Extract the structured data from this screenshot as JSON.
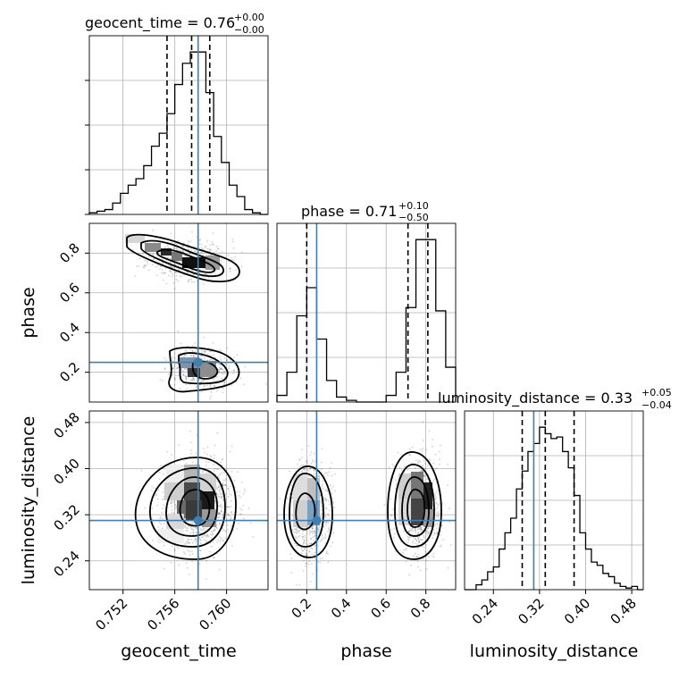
{
  "chart_data": {
    "type": "corner",
    "parameters": [
      "geocent_time",
      "phase",
      "luminosity_distance"
    ],
    "colors": {
      "truth": "#3f7fb1",
      "contour": "#000000",
      "grid": "#b0b0b0"
    },
    "truths": {
      "geocent_time": 0.7578,
      "phase": 0.25,
      "luminosity_distance": 0.31
    },
    "titles": {
      "geocent_time": {
        "label": "geocent_time = 0.76",
        "upper": "+0.00",
        "lower": "−0.00"
      },
      "phase": {
        "label": "phase = 0.71",
        "upper": "+0.10",
        "lower": "−0.50"
      },
      "luminosity_distance": {
        "label": "luminosity_distance = 0.33",
        "upper": "+0.05",
        "lower": "−0.04"
      }
    },
    "ranges": {
      "geocent_time": [
        0.7494,
        0.7632
      ],
      "phase": [
        0.05,
        0.95
      ],
      "luminosity_distance": [
        0.19,
        0.5
      ]
    },
    "ticks": {
      "geocent_time": [
        "0.752",
        "0.756",
        "0.760"
      ],
      "phase": [
        "0.2",
        "0.4",
        "0.6",
        "0.8"
      ],
      "luminosity_distance": [
        "0.24",
        "0.32",
        "0.40",
        "0.48"
      ]
    },
    "quantiles": {
      "geocent_time": [
        0.7554,
        0.7573,
        0.7587
      ],
      "phase": [
        0.2,
        0.71,
        0.81
      ],
      "luminosity_distance": [
        0.29,
        0.33,
        0.38
      ]
    },
    "histograms": {
      "geocent_time": {
        "edges": [
          0.7494,
          0.75,
          0.7506,
          0.7512,
          0.7518,
          0.7524,
          0.753,
          0.7536,
          0.7542,
          0.7548,
          0.7554,
          0.756,
          0.7566,
          0.7572,
          0.7578,
          0.7584,
          0.759,
          0.7596,
          0.7602,
          0.7608,
          0.7614,
          0.762,
          0.7626,
          0.7632
        ],
        "counts": [
          1,
          2,
          3,
          7,
          13,
          18,
          22,
          30,
          42,
          50,
          62,
          80,
          93,
          100,
          100,
          75,
          48,
          32,
          18,
          11,
          3,
          1,
          0
        ]
      },
      "phase": {
        "edges": [
          0.05,
          0.1,
          0.15,
          0.2,
          0.25,
          0.3,
          0.35,
          0.4,
          0.45,
          0.5,
          0.55,
          0.6,
          0.65,
          0.7,
          0.75,
          0.8,
          0.85,
          0.9,
          0.95
        ],
        "counts": [
          4,
          18,
          52,
          69,
          38,
          13,
          3,
          1,
          0,
          0,
          0,
          4,
          18,
          57,
          98,
          98,
          55,
          21
        ]
      },
      "luminosity_distance": {
        "edges": [
          0.19,
          0.2,
          0.21,
          0.22,
          0.23,
          0.24,
          0.25,
          0.26,
          0.27,
          0.28,
          0.29,
          0.3,
          0.31,
          0.32,
          0.33,
          0.34,
          0.35,
          0.36,
          0.37,
          0.38,
          0.39,
          0.4,
          0.41,
          0.42,
          0.43,
          0.44,
          0.45,
          0.46,
          0.47,
          0.48,
          0.49,
          0.5
        ],
        "counts": [
          0,
          0,
          3,
          6,
          11,
          14,
          25,
          35,
          44,
          62,
          73,
          85,
          90,
          100,
          96,
          93,
          94,
          85,
          75,
          58,
          35,
          25,
          17,
          15,
          10,
          8,
          4,
          2,
          1,
          2,
          0
        ]
      }
    },
    "scatter_2d": [
      {
        "x": "geocent_time",
        "y": "phase",
        "modes": [
          {
            "cx": 0.757,
            "cy": 0.77,
            "spread_x": 0.0015,
            "spread_y": 0.05
          },
          {
            "cx": 0.758,
            "cy": 0.22,
            "spread_x": 0.0011,
            "spread_y": 0.05
          }
        ]
      },
      {
        "x": "geocent_time",
        "y": "luminosity_distance",
        "modes": [
          {
            "cx": 0.7578,
            "cy": 0.335,
            "spread_x": 0.0014,
            "spread_y": 0.04
          }
        ]
      },
      {
        "x": "phase",
        "y": "luminosity_distance",
        "modes": [
          {
            "cx": 0.22,
            "cy": 0.33,
            "spread_x": 0.05,
            "spread_y": 0.045
          },
          {
            "cx": 0.77,
            "cy": 0.33,
            "spread_x": 0.055,
            "spread_y": 0.045
          }
        ]
      }
    ]
  }
}
